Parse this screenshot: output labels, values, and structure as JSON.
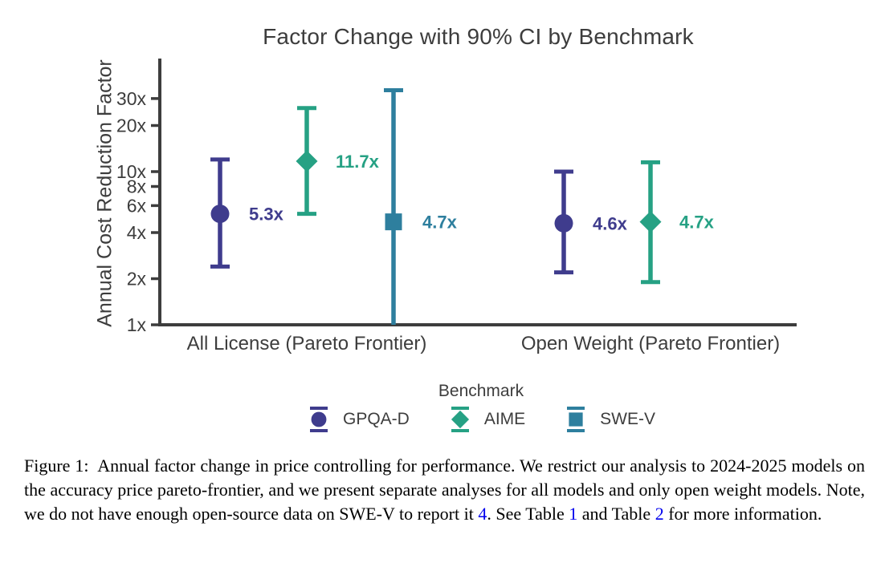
{
  "chart_data": {
    "type": "scatter",
    "subtype": "point-estimates-with-error-bars",
    "title": "Factor Change with 90% CI by Benchmark",
    "ylabel": "Annual Cost Reduction Factor",
    "yscale": "log",
    "ylim": [
      1,
      40
    ],
    "grid": false,
    "yticks": [
      {
        "label": "30x",
        "value": 30
      },
      {
        "label": "20x",
        "value": 20
      },
      {
        "label": "10x",
        "value": 10
      },
      {
        "label": "8x",
        "value": 8
      },
      {
        "label": "6x",
        "value": 6
      },
      {
        "label": "4x",
        "value": 4
      },
      {
        "label": "2x",
        "value": 2
      },
      {
        "label": "1x",
        "value": 1
      }
    ],
    "categories": [
      "All License (Pareto Frontier)",
      "Open Weight (Pareto Frontier)"
    ],
    "legend_title": "Benchmark",
    "legend_position": "bottom-center",
    "axis_color": "#3d3d3d",
    "series": [
      {
        "name": "GPQA-D",
        "marker": "circle",
        "color": "#3f3c8d",
        "points": [
          {
            "category": 0,
            "mean": 5.3,
            "label": "5.3x",
            "ci_low": 2.4,
            "ci_high": 12
          },
          {
            "category": 1,
            "mean": 4.6,
            "label": "4.6x",
            "ci_low": 2.2,
            "ci_high": 10
          }
        ]
      },
      {
        "name": "AIME",
        "marker": "diamond",
        "color": "#26a184",
        "points": [
          {
            "category": 0,
            "mean": 11.7,
            "label": "11.7x",
            "ci_low": 5.3,
            "ci_high": 26
          },
          {
            "category": 1,
            "mean": 4.7,
            "label": "4.7x",
            "ci_low": 1.9,
            "ci_high": 11.5
          }
        ]
      },
      {
        "name": "SWE-V",
        "marker": "square",
        "color": "#2e7f9e",
        "points": [
          {
            "category": 0,
            "mean": 4.7,
            "label": "4.7x",
            "ci_low": 1.0,
            "ci_low_clipped": true,
            "ci_high": 34
          }
        ]
      }
    ]
  },
  "figure": {
    "caption": {
      "parts": [
        "Figure 1:  Annual factor change in price controlling for performance.  We restrict our analysis to 2024-2025 models on the accuracy price pareto-frontier, and we present separate analyses for all models and only open weight models. Note, we do not have enough open-source data on SWE-V to report it ",
        "4",
        ". See Table ",
        "1",
        " and Table ",
        "2",
        " for more information."
      ]
    }
  }
}
